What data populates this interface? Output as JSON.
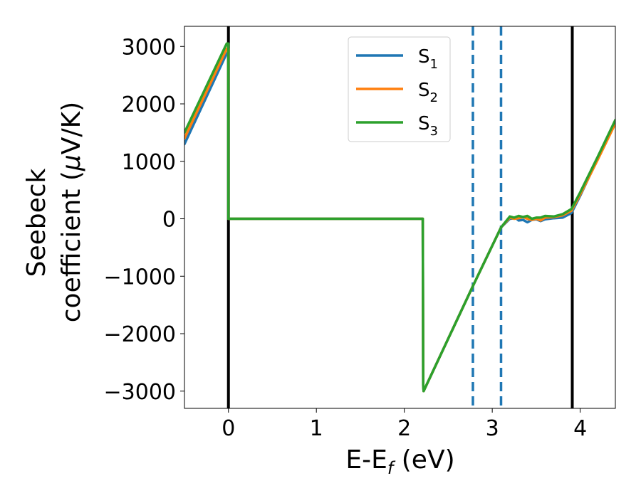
{
  "chart_data": {
    "type": "line",
    "xlabel": {
      "base": "E-E",
      "sub": "f",
      "unit": " (eV)"
    },
    "ylabel": {
      "line1": "Seebeck",
      "line2": "coefficient  (",
      "mu": "μ",
      "unit": "V/K)"
    },
    "xlim": [
      -0.5,
      4.4
    ],
    "ylim": [
      -3300,
      3350
    ],
    "xticks": [
      0,
      1,
      2,
      3,
      4
    ],
    "yticks": [
      3000,
      2000,
      1000,
      0,
      -1000,
      -2000,
      -3000
    ],
    "xtick_labels": [
      "0",
      "1",
      "2",
      "3",
      "4"
    ],
    "ytick_labels": [
      "3000",
      "2000",
      "1000",
      "0",
      "−1000",
      "−2000",
      "−3000"
    ],
    "grid": false,
    "legend_position": "top-center",
    "vertical_lines": [
      {
        "x": 0.0,
        "style": "solid",
        "color": "#000000"
      },
      {
        "x": 3.91,
        "style": "solid",
        "color": "#000000"
      },
      {
        "x": 2.78,
        "style": "dashed",
        "color": "#1f77b4"
      },
      {
        "x": 3.1,
        "style": "dashed",
        "color": "#1f77b4"
      }
    ],
    "series": [
      {
        "name": "S1",
        "label_base": "S",
        "label_sub": "1",
        "color": "#1f77b4",
        "x": [
          -0.5,
          -0.02,
          -0.001,
          0.0,
          2.21,
          2.215,
          2.22,
          2.78,
          3.1,
          3.2,
          3.27,
          3.3,
          3.35,
          3.4,
          3.45,
          3.5,
          3.55,
          3.6,
          3.7,
          3.8,
          3.9,
          4.0,
          4.2,
          4.4
        ],
        "y": [
          1300,
          2880,
          2880,
          0,
          0,
          -2900,
          -3000,
          -1170,
          -150,
          0,
          10,
          -30,
          -20,
          -60,
          -20,
          -10,
          -40,
          -10,
          10,
          20,
          100,
          400,
          1050,
          1680
        ]
      },
      {
        "name": "S2",
        "label_base": "S",
        "label_sub": "2",
        "color": "#ff7f0e",
        "x": [
          -0.5,
          -0.02,
          -0.001,
          0.0,
          2.21,
          2.215,
          2.22,
          2.78,
          3.1,
          3.2,
          3.25,
          3.3,
          3.35,
          3.4,
          3.45,
          3.5,
          3.55,
          3.6,
          3.7,
          3.8,
          3.9,
          4.0,
          4.2,
          4.4
        ],
        "y": [
          1400,
          2960,
          2960,
          0,
          0,
          -2900,
          -3000,
          -1170,
          -150,
          20,
          0,
          10,
          30,
          0,
          -20,
          0,
          -30,
          20,
          30,
          60,
          140,
          420,
          1030,
          1660
        ]
      },
      {
        "name": "S3",
        "label_base": "S",
        "label_sub": "3",
        "color": "#2ca02c",
        "x": [
          -0.5,
          -0.02,
          -0.001,
          0.0,
          2.21,
          2.215,
          2.22,
          2.78,
          3.1,
          3.2,
          3.25,
          3.3,
          3.35,
          3.4,
          3.45,
          3.5,
          3.55,
          3.6,
          3.7,
          3.8,
          3.9,
          4.0,
          4.2,
          4.4
        ],
        "y": [
          1500,
          3050,
          3050,
          0,
          0,
          -2900,
          -3000,
          -1170,
          -150,
          40,
          20,
          50,
          30,
          50,
          0,
          20,
          20,
          50,
          40,
          80,
          170,
          460,
          1080,
          1720
        ]
      }
    ]
  }
}
